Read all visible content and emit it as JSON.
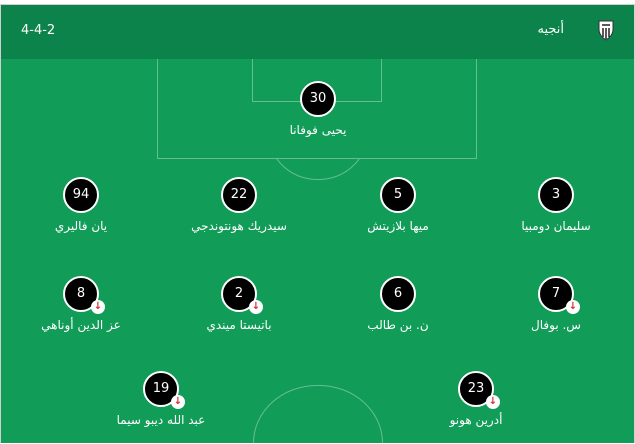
{
  "header": {
    "formation": "4-4-2",
    "team_name": "أنجيه",
    "crest_icon": "angers-crest"
  },
  "colors": {
    "header": "#0b834a",
    "pitch": "#119c58",
    "sub_arrow": "#d32f2f"
  },
  "players": [
    {
      "number": "30",
      "name": "يحيى فوفانا",
      "subbed_off": false
    },
    {
      "number": "94",
      "name": "يان فاليري",
      "subbed_off": false
    },
    {
      "number": "22",
      "name": "سيدريك هونتوندجي",
      "subbed_off": false
    },
    {
      "number": "5",
      "name": "ميها بلازيتش",
      "subbed_off": false
    },
    {
      "number": "3",
      "name": "سليمان دومبيا",
      "subbed_off": false
    },
    {
      "number": "8",
      "name": "عز الدين أوناهي",
      "subbed_off": true
    },
    {
      "number": "2",
      "name": "باتيستا ميندي",
      "subbed_off": true
    },
    {
      "number": "6",
      "name": "ن. بن طالب",
      "subbed_off": false
    },
    {
      "number": "7",
      "name": "س. بوفال",
      "subbed_off": true
    },
    {
      "number": "19",
      "name": "عبد الله ديبو سيما",
      "subbed_off": true
    },
    {
      "number": "23",
      "name": "أدرين هونو",
      "subbed_off": true
    }
  ]
}
